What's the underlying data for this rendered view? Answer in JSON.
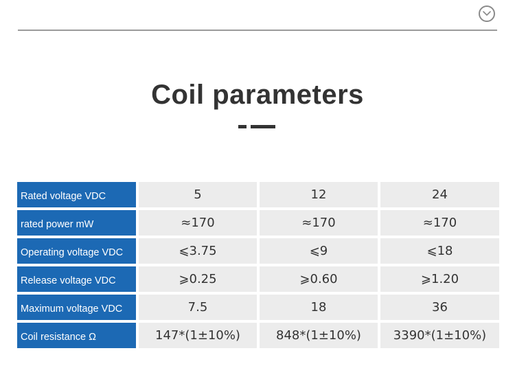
{
  "header": {
    "collapse_icon": "chevron-down-circle-icon"
  },
  "section": {
    "title": "Coil parameters"
  },
  "colors": {
    "label_bg": "#1c69b4",
    "value_bg": "#ececec",
    "title_text": "#333333"
  },
  "table": {
    "rows": [
      {
        "label": "Rated voltage VDC",
        "values": [
          "5",
          "12",
          "24"
        ]
      },
      {
        "label": "rated power mW",
        "values": [
          "≈170",
          "≈170",
          "≈170"
        ]
      },
      {
        "label": "Operating voltage VDC",
        "values": [
          "⩽3.75",
          "⩽9",
          "⩽18"
        ]
      },
      {
        "label": "Release voltage VDC",
        "values": [
          "⩾0.25",
          "⩾0.60",
          "⩾1.20"
        ]
      },
      {
        "label": "Maximum voltage VDC",
        "values": [
          "7.5",
          "18",
          "36"
        ]
      },
      {
        "label": "Coil resistance Ω",
        "values": [
          "147*(1±10%)",
          "848*(1±10%)",
          "3390*(1±10%)"
        ]
      }
    ]
  }
}
